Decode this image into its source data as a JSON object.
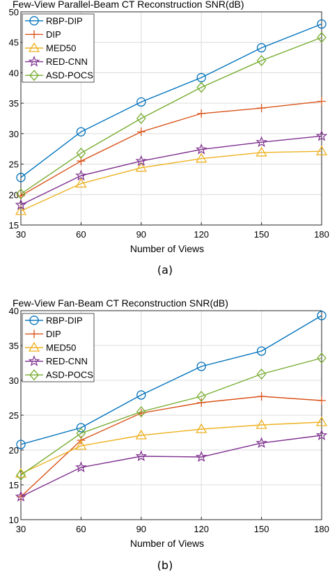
{
  "chart_data": [
    {
      "type": "line",
      "title": "Few-View Parallel-Beam CT Reconstruction SNR(dB)",
      "xlabel": "Number of Views",
      "ylabel": "",
      "caption": "(a)",
      "x": [
        30,
        60,
        90,
        120,
        150,
        180
      ],
      "xlim": [
        30,
        180
      ],
      "ylim": [
        15,
        50
      ],
      "xticks": [
        30,
        60,
        90,
        120,
        150,
        180
      ],
      "yticks": [
        15,
        20,
        25,
        30,
        35,
        40,
        45,
        50
      ],
      "grid": true,
      "legend_position": "top-left",
      "series": [
        {
          "name": "RBP-DIP",
          "color": "#0072BD",
          "marker": "circle",
          "values": [
            22.8,
            30.3,
            35.2,
            39.2,
            44.1,
            48.0
          ]
        },
        {
          "name": "DIP",
          "color": "#D95319",
          "marker": "plus",
          "values": [
            19.8,
            25.5,
            30.3,
            33.3,
            34.2,
            35.3
          ]
        },
        {
          "name": "MED50",
          "color": "#EDB120",
          "marker": "triangle",
          "values": [
            17.3,
            21.8,
            24.4,
            25.9,
            26.9,
            27.1
          ]
        },
        {
          "name": "RED-CNN",
          "color": "#7E2F8E",
          "marker": "star",
          "values": [
            18.3,
            23.1,
            25.5,
            27.4,
            28.6,
            29.6
          ]
        },
        {
          "name": "ASD-POCS",
          "color": "#77AC30",
          "marker": "diamond",
          "values": [
            20.1,
            26.8,
            32.5,
            37.6,
            42.0,
            45.8
          ]
        }
      ]
    },
    {
      "type": "line",
      "title": "Few-View Fan-Beam CT Reconstruction SNR(dB)",
      "xlabel": "Number of Views",
      "ylabel": "",
      "caption": "(b)",
      "x": [
        30,
        60,
        90,
        120,
        150,
        180
      ],
      "xlim": [
        30,
        180
      ],
      "ylim": [
        10,
        40
      ],
      "xticks": [
        30,
        60,
        90,
        120,
        150,
        180
      ],
      "yticks": [
        10,
        15,
        20,
        25,
        30,
        35,
        40
      ],
      "grid": true,
      "legend_position": "top-left",
      "series": [
        {
          "name": "RBP-DIP",
          "color": "#0072BD",
          "marker": "circle",
          "values": [
            20.8,
            23.2,
            27.9,
            32.0,
            34.2,
            39.3
          ]
        },
        {
          "name": "DIP",
          "color": "#D95319",
          "marker": "plus",
          "values": [
            13.3,
            21.4,
            25.3,
            26.8,
            27.7,
            27.1
          ]
        },
        {
          "name": "MED50",
          "color": "#EDB120",
          "marker": "triangle",
          "values": [
            16.6,
            20.6,
            22.1,
            23.0,
            23.6,
            24.0
          ]
        },
        {
          "name": "RED-CNN",
          "color": "#7E2F8E",
          "marker": "star",
          "values": [
            13.3,
            17.5,
            19.1,
            19.0,
            21.0,
            22.1
          ]
        },
        {
          "name": "ASD-POCS",
          "color": "#77AC30",
          "marker": "diamond",
          "values": [
            16.4,
            22.4,
            25.5,
            27.7,
            30.9,
            33.2
          ]
        }
      ]
    }
  ]
}
